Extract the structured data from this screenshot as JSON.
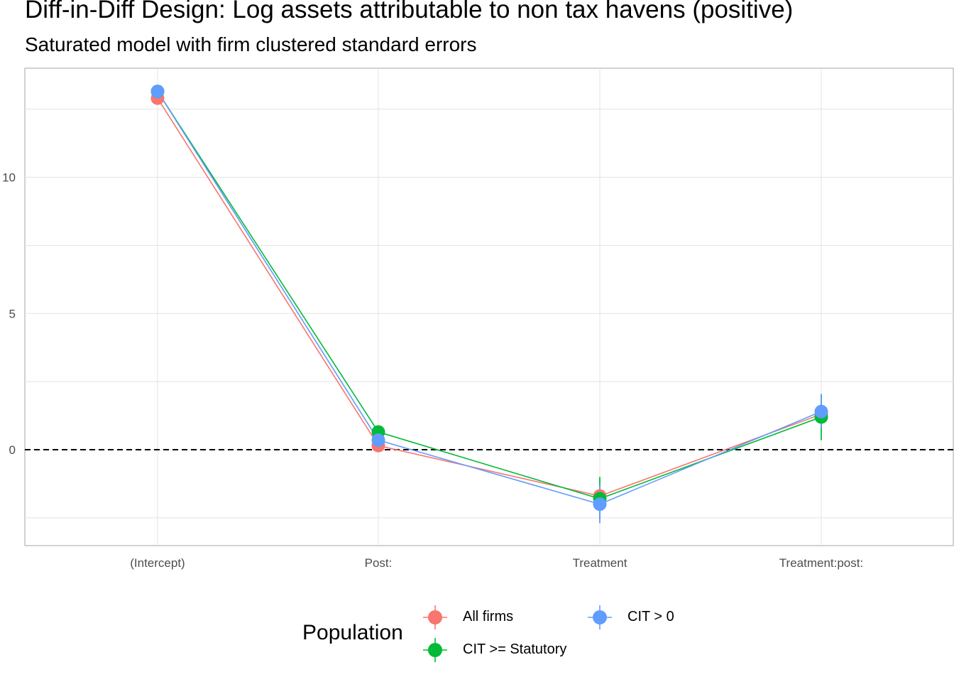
{
  "title": "Diff-in-Diff Design: Log assets attributable to non tax havens (positive)",
  "subtitle": "Saturated model with firm clustered standard errors",
  "legend": {
    "title": "Population",
    "entries": [
      "All firms",
      "CIT >= Statutory",
      "CIT > 0"
    ]
  },
  "chart_data": {
    "type": "line",
    "title": "Diff-in-Diff Design: Log assets attributable to non tax havens (positive)",
    "subtitle": "Saturated model with firm clustered standard errors",
    "xlabel": "",
    "ylabel": "",
    "categories": [
      "(Intercept)",
      "Post:",
      "Treatment",
      "Treatment:post:"
    ],
    "y_ticks": [
      0,
      5,
      10
    ],
    "ylim": [
      -3.5,
      14.0
    ],
    "grid": true,
    "reference_line": {
      "y": 0,
      "style": "dashed"
    },
    "legend_title": "Population",
    "legend_position": "bottom",
    "series": [
      {
        "name": "All firms",
        "color": "#F8766D",
        "values": [
          12.9,
          0.15,
          -1.7,
          1.3
        ],
        "ci_low": [
          12.85,
          0.05,
          -2.0,
          1.0
        ],
        "ci_high": [
          12.95,
          0.25,
          -1.4,
          1.6
        ]
      },
      {
        "name": "CIT >= Statutory",
        "color": "#00BA38",
        "values": [
          13.15,
          0.65,
          -1.8,
          1.2
        ],
        "ci_low": [
          13.05,
          0.45,
          -2.55,
          0.35
        ],
        "ci_high": [
          13.25,
          0.85,
          -1.0,
          2.0
        ]
      },
      {
        "name": "CIT > 0",
        "color": "#619CFF",
        "values": [
          13.15,
          0.35,
          -2.0,
          1.4
        ],
        "ci_low": [
          13.1,
          0.25,
          -2.7,
          0.8
        ],
        "ci_high": [
          13.2,
          0.45,
          -1.3,
          2.05
        ]
      }
    ]
  }
}
